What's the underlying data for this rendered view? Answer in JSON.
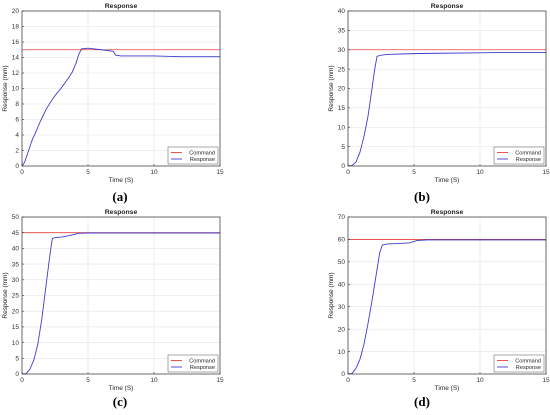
{
  "chart_data": [
    {
      "type": "line",
      "title": "Response",
      "xlabel": "Time (S)",
      "ylabel": "Response (mm)",
      "xlim": [
        0,
        15
      ],
      "ylim": [
        0,
        20
      ],
      "xticks": [
        0,
        5,
        10,
        15
      ],
      "yticks": [
        0,
        2,
        4,
        6,
        8,
        10,
        12,
        14,
        16,
        18,
        20
      ],
      "grid": true,
      "legend": "bottom-right",
      "caption": "(a)",
      "series": [
        {
          "name": "Command",
          "color": "#e8423a",
          "x": [
            0,
            15
          ],
          "y": [
            15,
            15
          ]
        },
        {
          "name": "Response",
          "color": "#3c3ccf",
          "x": [
            0,
            0.2,
            0.4,
            0.6,
            0.8,
            1.0,
            1.2,
            1.4,
            1.6,
            1.8,
            2.0,
            2.3,
            2.6,
            2.9,
            3.2,
            3.5,
            3.8,
            4.1,
            4.3,
            4.5,
            5.0,
            5.5,
            6.0,
            6.5,
            6.9,
            7.1,
            7.5,
            8.0,
            10,
            12,
            15
          ],
          "y": [
            0,
            0.5,
            1.5,
            2.5,
            3.5,
            4.2,
            5.0,
            5.8,
            6.5,
            7.2,
            7.8,
            8.6,
            9.3,
            9.9,
            10.6,
            11.3,
            12.1,
            13.3,
            14.4,
            15.1,
            15.2,
            15.1,
            15.0,
            14.9,
            14.8,
            14.3,
            14.2,
            14.2,
            14.2,
            14.1,
            14.1
          ]
        }
      ]
    },
    {
      "type": "line",
      "title": "Response",
      "xlabel": "Time (S)",
      "ylabel": "Response (mm)",
      "xlim": [
        0,
        15
      ],
      "ylim": [
        0,
        40
      ],
      "xticks": [
        0,
        5,
        10,
        15
      ],
      "yticks": [
        0,
        5,
        10,
        15,
        20,
        25,
        30,
        35,
        40
      ],
      "grid": true,
      "legend": "bottom-right",
      "caption": "(b)",
      "series": [
        {
          "name": "Command",
          "color": "#e8423a",
          "x": [
            0,
            15
          ],
          "y": [
            30,
            30
          ]
        },
        {
          "name": "Response",
          "color": "#3c3ccf",
          "x": [
            0,
            0.3,
            0.6,
            0.9,
            1.2,
            1.5,
            1.8,
            2.0,
            2.2,
            2.5,
            3.0,
            4.0,
            5.0,
            7.0,
            10.0,
            12.0,
            15.0
          ],
          "y": [
            0,
            0.1,
            1.0,
            3.5,
            7.5,
            12.5,
            19.5,
            24.5,
            28.3,
            28.6,
            28.8,
            28.9,
            29.0,
            29.1,
            29.2,
            29.3,
            29.3
          ]
        }
      ]
    },
    {
      "type": "line",
      "title": "Response",
      "xlabel": "Time (S)",
      "ylabel": "Response (mm)",
      "xlim": [
        0,
        15
      ],
      "ylim": [
        0,
        50
      ],
      "xticks": [
        0,
        5,
        10,
        15
      ],
      "yticks": [
        0,
        5,
        10,
        15,
        20,
        25,
        30,
        35,
        40,
        45,
        50
      ],
      "grid": true,
      "legend": "bottom-right",
      "caption": "(c)",
      "series": [
        {
          "name": "Command",
          "color": "#e8423a",
          "x": [
            0,
            15
          ],
          "y": [
            45,
            45
          ]
        },
        {
          "name": "Response",
          "color": "#3c3ccf",
          "x": [
            0,
            0.3,
            0.6,
            0.9,
            1.2,
            1.5,
            1.8,
            2.1,
            2.3,
            2.6,
            3.0,
            3.5,
            4.0,
            4.3,
            5.0,
            7.0,
            10.0,
            15.0
          ],
          "y": [
            0,
            0.1,
            1.5,
            4.5,
            9.5,
            17.5,
            27.5,
            37.5,
            43.2,
            43.5,
            43.6,
            44.0,
            44.5,
            44.8,
            44.9,
            44.9,
            44.9,
            44.9
          ]
        }
      ]
    },
    {
      "type": "line",
      "title": "Response",
      "xlabel": "Time (S)",
      "ylabel": "Response (mm)",
      "xlim": [
        0,
        15
      ],
      "ylim": [
        0,
        70
      ],
      "xticks": [
        0,
        5,
        10,
        15
      ],
      "yticks": [
        0,
        10,
        20,
        30,
        40,
        50,
        60,
        70
      ],
      "grid": true,
      "legend": "bottom-right",
      "caption": "(d)",
      "series": [
        {
          "name": "Command",
          "color": "#e8423a",
          "x": [
            0,
            15
          ],
          "y": [
            60,
            60
          ]
        },
        {
          "name": "Response",
          "color": "#3c3ccf",
          "x": [
            0,
            0.3,
            0.6,
            0.9,
            1.2,
            1.5,
            1.8,
            2.1,
            2.4,
            2.6,
            3.0,
            4.0,
            4.7,
            5.2,
            6.0,
            8.0,
            10.0,
            15.0
          ],
          "y": [
            0,
            0.2,
            2.5,
            6.5,
            13.0,
            22.0,
            32.0,
            43.0,
            54.0,
            57.5,
            58.0,
            58.2,
            58.5,
            59.5,
            59.8,
            59.8,
            59.8,
            59.8
          ]
        }
      ]
    }
  ]
}
